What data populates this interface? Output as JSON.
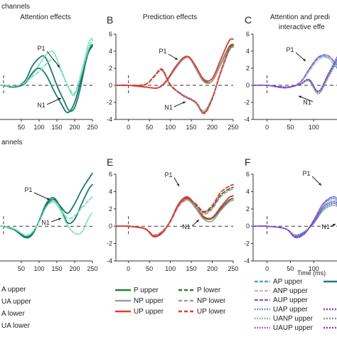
{
  "row_labels": {
    "top": "channels",
    "bottom": "annels"
  },
  "panel_titles": {
    "A": "Attention effects",
    "B": "Prediction effects",
    "C": [
      "Attention and predi",
      "interactive effe"
    ]
  },
  "panel_letters": {
    "B": "B",
    "C": "C",
    "E": "E",
    "F": "F"
  },
  "time_label": "Time (ms)",
  "legends": {
    "A": [
      "A upper",
      "UA upper",
      "A lower",
      "UA lower"
    ],
    "B": [
      "P upper",
      "NP upper",
      "UP upper",
      "P lower",
      "NP lower",
      "UP lower"
    ],
    "C": [
      "AP upper",
      "ANP upper",
      "AUP upper",
      "UAP upper",
      "UANP upper",
      "UAUP upper"
    ]
  },
  "colors": {
    "A": "#1e7a6e",
    "UA": "#76e0bd",
    "P": "#2e7d32",
    "NP": "#9e9e9e",
    "UP": "#e53935",
    "AP": "#4fa8c7",
    "ANP": "#b8c4c9",
    "AUP": "#8e5ad8",
    "UAP": "#3a7fb5",
    "UANP": "#8a96a0",
    "UAUP": "#7a40c8"
  },
  "chart_data": [
    {
      "panel": "A-top",
      "type": "line",
      "xlim": [
        -10,
        250
      ],
      "ylim": [
        -4,
        6
      ],
      "xticks": [
        50,
        100,
        150,
        200,
        250
      ],
      "yticks": [],
      "annotations": [
        "P1",
        "N1"
      ],
      "series": [
        {
          "name": "A upper",
          "x": [
            -10,
            0,
            30,
            60,
            80,
            100,
            115,
            130,
            150,
            170,
            185,
            200,
            215,
            235,
            250
          ],
          "y": [
            0,
            0,
            -0.2,
            0.5,
            2.2,
            3.2,
            3.4,
            2.2,
            0,
            -1.8,
            -3.0,
            -2.6,
            -0.5,
            3.4,
            4.6
          ]
        },
        {
          "name": "UA upper",
          "x": [
            -10,
            0,
            30,
            60,
            80,
            100,
            120,
            140,
            160,
            180,
            200,
            225,
            240,
            250
          ],
          "y": [
            0,
            0,
            -0.2,
            0.2,
            1.2,
            2.4,
            3.6,
            3.9,
            2.0,
            0,
            -1.1,
            2.5,
            5.0,
            5.5
          ]
        },
        {
          "name": "A lower",
          "x": [
            -10,
            0,
            30,
            60,
            80,
            100,
            120,
            140,
            160,
            180,
            200,
            220,
            240,
            250
          ],
          "y": [
            0,
            0,
            -0.2,
            0.2,
            1.4,
            2.0,
            1.2,
            -0.5,
            -2.0,
            -3.2,
            -2.0,
            1.0,
            4.1,
            4.8
          ]
        },
        {
          "name": "UA lower",
          "x": [
            -10,
            0,
            30,
            60,
            80,
            100,
            120,
            140,
            160,
            180,
            200,
            220,
            240,
            250
          ],
          "y": [
            0,
            0,
            -0.1,
            0.3,
            1.0,
            1.6,
            2.5,
            3.0,
            1.8,
            0,
            -0.9,
            1.7,
            4.4,
            5.3
          ]
        }
      ]
    },
    {
      "panel": "B-top",
      "type": "line",
      "xlim": [
        -30,
        250
      ],
      "ylim": [
        -4,
        6
      ],
      "xticks": [
        0,
        50,
        100,
        150,
        200,
        250
      ],
      "yticks": [
        -4,
        -2,
        0,
        2,
        4,
        6
      ],
      "annotations": [
        "P1",
        "N1"
      ],
      "series": [
        {
          "name": "P upper",
          "x": [
            -30,
            0,
            40,
            70,
            90,
            110,
            130,
            145,
            160,
            180,
            200,
            220,
            240,
            250
          ],
          "y": [
            0,
            0,
            -0.2,
            -0.3,
            0.5,
            2.0,
            3.2,
            3.3,
            2.2,
            0.6,
            0.5,
            2.5,
            4.5,
            4.8
          ]
        },
        {
          "name": "NP upper",
          "x": [
            -30,
            0,
            40,
            70,
            90,
            110,
            130,
            145,
            160,
            180,
            200,
            220,
            240,
            250
          ],
          "y": [
            0,
            0,
            -0.2,
            -0.3,
            0.4,
            1.8,
            3.0,
            3.2,
            2.0,
            0.4,
            0.5,
            2.4,
            4.3,
            4.6
          ]
        },
        {
          "name": "UP upper",
          "x": [
            -30,
            0,
            40,
            70,
            90,
            110,
            130,
            145,
            160,
            180,
            200,
            220,
            240,
            250
          ],
          "y": [
            0,
            0,
            -0.2,
            -0.3,
            0.5,
            2.0,
            3.2,
            3.3,
            2.3,
            0.7,
            0.8,
            3.0,
            5.2,
            5.4
          ]
        },
        {
          "name": "P lower",
          "x": [
            -30,
            0,
            40,
            60,
            80,
            100,
            130,
            160,
            180,
            200,
            220,
            240,
            250
          ],
          "y": [
            0,
            0,
            0.1,
            1.0,
            1.8,
            0,
            -1.2,
            -2.0,
            -3.2,
            -1.5,
            1.5,
            4.1,
            4.6
          ]
        },
        {
          "name": "NP lower",
          "x": [
            -30,
            0,
            40,
            60,
            80,
            100,
            130,
            160,
            180,
            200,
            220,
            240,
            250
          ],
          "y": [
            0,
            0,
            0.1,
            0.9,
            1.7,
            0,
            -1.1,
            -1.9,
            -3.0,
            -1.4,
            1.4,
            4.0,
            4.5
          ]
        },
        {
          "name": "UP lower",
          "x": [
            -30,
            0,
            40,
            60,
            80,
            100,
            130,
            160,
            180,
            200,
            220,
            240,
            250
          ],
          "y": [
            0,
            0,
            0.1,
            1.0,
            1.9,
            0.1,
            -1.2,
            -2.0,
            -3.3,
            -1.6,
            1.6,
            4.2,
            4.7
          ]
        }
      ]
    },
    {
      "panel": "C-top",
      "type": "line",
      "xlim": [
        -30,
        150
      ],
      "ylim": [
        -4,
        6
      ],
      "xticks": [
        0,
        50,
        100,
        150
      ],
      "yticks": [
        -4,
        -2,
        0,
        2,
        4,
        6
      ],
      "annotations": [
        "P1",
        "N1"
      ],
      "series": [
        {
          "name": "AP upper",
          "x": [
            -30,
            0,
            40,
            70,
            90,
            110,
            130,
            150
          ],
          "y": [
            0,
            0,
            -0.3,
            0.3,
            1.8,
            3.2,
            3.3,
            2.0
          ]
        },
        {
          "name": "ANP upper",
          "x": [
            -30,
            0,
            40,
            70,
            90,
            110,
            130,
            150
          ],
          "y": [
            0,
            0,
            -0.3,
            0.2,
            1.6,
            3.0,
            3.2,
            2.2
          ]
        },
        {
          "name": "AUP upper",
          "x": [
            -30,
            0,
            40,
            70,
            90,
            110,
            130,
            150
          ],
          "y": [
            0,
            0,
            -0.3,
            0.3,
            1.9,
            3.3,
            3.5,
            2.4
          ]
        },
        {
          "name": "UAP upper",
          "x": [
            -30,
            0,
            40,
            70,
            90,
            110,
            130,
            150
          ],
          "y": [
            0,
            0,
            -0.2,
            0.1,
            0.6,
            -0.8,
            1.0,
            3.0
          ]
        },
        {
          "name": "UANP upper",
          "x": [
            -30,
            0,
            40,
            70,
            90,
            110,
            130,
            150
          ],
          "y": [
            0,
            0,
            -0.2,
            0.1,
            0.5,
            -1.0,
            0.8,
            2.8
          ]
        },
        {
          "name": "UAUP upper",
          "x": [
            -30,
            0,
            40,
            70,
            90,
            110,
            130,
            150
          ],
          "y": [
            0,
            0,
            -0.2,
            0.1,
            0.7,
            -0.7,
            1.2,
            3.3
          ]
        }
      ]
    },
    {
      "panel": "A-bottom",
      "type": "line",
      "xlim": [
        -10,
        250
      ],
      "ylim": [
        -4,
        6
      ],
      "xticks": [
        50,
        100,
        150,
        200,
        250
      ],
      "yticks": [],
      "annotations": [
        "P1",
        "N1"
      ],
      "series": [
        {
          "name": "A upper",
          "x": [
            -10,
            0,
            30,
            60,
            80,
            100,
            120,
            140,
            160,
            180,
            200,
            220,
            240,
            250
          ],
          "y": [
            0,
            0,
            -0.4,
            -1.3,
            -1.0,
            0.6,
            2.6,
            3.3,
            2.2,
            0.4,
            0.8,
            2.6,
            4.3,
            4.8
          ]
        },
        {
          "name": "UA upper",
          "x": [
            -10,
            0,
            30,
            60,
            80,
            100,
            120,
            140,
            160,
            180,
            200,
            220,
            240,
            250
          ],
          "y": [
            0,
            0,
            -0.3,
            -1.1,
            -0.8,
            0.5,
            2.3,
            2.9,
            1.8,
            0.1,
            -0.8,
            -0.7,
            1.0,
            1.6
          ]
        },
        {
          "name": "A lower",
          "x": [
            -10,
            0,
            30,
            60,
            80,
            100,
            120,
            140,
            160,
            180,
            200,
            220,
            240,
            250
          ],
          "y": [
            0,
            0,
            -0.4,
            -1.2,
            -0.9,
            0.6,
            2.4,
            3.1,
            2.3,
            1.5,
            2.6,
            4.2,
            5.5,
            6.1
          ]
        },
        {
          "name": "UA lower",
          "x": [
            -10,
            0,
            30,
            60,
            80,
            100,
            120,
            140,
            160,
            180,
            200,
            220,
            240,
            250
          ],
          "y": [
            0,
            0,
            -0.3,
            -1.0,
            -0.7,
            0.5,
            2.2,
            2.8,
            2.0,
            0.9,
            1.2,
            2.1,
            3.0,
            3.4
          ]
        }
      ]
    },
    {
      "panel": "E-bottom",
      "type": "line",
      "xlim": [
        -30,
        250
      ],
      "ylim": [
        -4,
        6
      ],
      "xticks": [
        0,
        50,
        100,
        150,
        200,
        250
      ],
      "yticks": [
        -4,
        -2,
        0,
        2,
        4,
        6
      ],
      "annotations": [
        "P1",
        "N1"
      ],
      "series": [
        {
          "name": "P upper",
          "x": [
            -30,
            0,
            40,
            60,
            80,
            100,
            120,
            140,
            160,
            180,
            200,
            220,
            240,
            250
          ],
          "y": [
            0,
            0,
            -0.3,
            -1.2,
            -0.8,
            0.6,
            2.6,
            3.3,
            2.3,
            1.0,
            0.9,
            2.0,
            3.0,
            3.2
          ]
        },
        {
          "name": "NP upper",
          "x": [
            -30,
            0,
            40,
            60,
            80,
            100,
            120,
            140,
            160,
            180,
            200,
            220,
            240,
            250
          ],
          "y": [
            0,
            0,
            -0.3,
            -1.1,
            -0.7,
            0.5,
            2.4,
            3.1,
            2.1,
            0.8,
            0.6,
            1.8,
            2.8,
            3.0
          ]
        },
        {
          "name": "UP upper",
          "x": [
            -30,
            0,
            40,
            60,
            80,
            100,
            120,
            140,
            160,
            180,
            200,
            220,
            240,
            250
          ],
          "y": [
            0,
            0,
            -0.3,
            -1.2,
            -0.8,
            0.6,
            2.6,
            3.4,
            2.4,
            1.1,
            1.0,
            2.2,
            3.3,
            3.5
          ]
        },
        {
          "name": "P lower",
          "x": [
            -30,
            0,
            40,
            60,
            80,
            100,
            120,
            140,
            160,
            180,
            200,
            220,
            240,
            250
          ],
          "y": [
            0,
            0,
            -0.3,
            -1.1,
            -0.7,
            0.6,
            2.5,
            3.2,
            2.5,
            1.6,
            2.2,
            3.6,
            4.3,
            4.5
          ]
        },
        {
          "name": "NP lower",
          "x": [
            -30,
            0,
            40,
            60,
            80,
            100,
            120,
            140,
            160,
            180,
            200,
            220,
            240,
            250
          ],
          "y": [
            0,
            0,
            -0.3,
            -1.0,
            -0.6,
            0.5,
            2.3,
            3.0,
            2.3,
            1.4,
            2.0,
            3.4,
            4.1,
            4.3
          ]
        },
        {
          "name": "UP lower",
          "x": [
            -30,
            0,
            40,
            60,
            80,
            100,
            120,
            140,
            160,
            180,
            200,
            220,
            240,
            250
          ],
          "y": [
            0,
            0,
            -0.3,
            -1.1,
            -0.7,
            0.6,
            2.5,
            3.2,
            2.6,
            1.7,
            2.4,
            3.9,
            4.6,
            4.8
          ]
        }
      ]
    },
    {
      "panel": "F-bottom",
      "type": "line",
      "xlim": [
        -30,
        150
      ],
      "ylim": [
        -4,
        6
      ],
      "xticks": [
        0,
        50,
        100,
        150
      ],
      "yticks": [
        -4,
        -2,
        0,
        2,
        4,
        6
      ],
      "annotations": [
        "P1",
        "N1"
      ],
      "series": [
        {
          "name": "AP upper",
          "x": [
            -30,
            0,
            40,
            60,
            80,
            100,
            120,
            140,
            150
          ],
          "y": [
            0,
            0,
            -0.3,
            -1.2,
            -0.8,
            0.6,
            2.5,
            3.2,
            3.0
          ]
        },
        {
          "name": "ANP upper",
          "x": [
            -30,
            0,
            40,
            60,
            80,
            100,
            120,
            140,
            150
          ],
          "y": [
            0,
            0,
            -0.3,
            -1.1,
            -0.7,
            0.5,
            2.3,
            3.0,
            2.8
          ]
        },
        {
          "name": "AUP upper",
          "x": [
            -30,
            0,
            40,
            60,
            80,
            100,
            120,
            140,
            150
          ],
          "y": [
            0,
            0,
            -0.3,
            -1.3,
            -0.9,
            0.7,
            2.6,
            3.4,
            3.2
          ]
        },
        {
          "name": "UAP upper",
          "x": [
            -30,
            0,
            40,
            60,
            80,
            100,
            120,
            140,
            150
          ],
          "y": [
            0,
            0,
            -0.3,
            -1.1,
            -0.7,
            0.4,
            2.0,
            2.6,
            2.5
          ]
        },
        {
          "name": "UANP upper",
          "x": [
            -30,
            0,
            40,
            60,
            80,
            100,
            120,
            140,
            150
          ],
          "y": [
            0,
            0,
            -0.3,
            -1.0,
            -0.6,
            0.3,
            1.8,
            2.4,
            2.3
          ]
        },
        {
          "name": "UAUP upper",
          "x": [
            -30,
            0,
            40,
            60,
            80,
            100,
            120,
            140,
            150
          ],
          "y": [
            0,
            0,
            -0.3,
            -1.2,
            -0.8,
            0.5,
            2.2,
            2.8,
            2.7
          ]
        }
      ]
    }
  ]
}
